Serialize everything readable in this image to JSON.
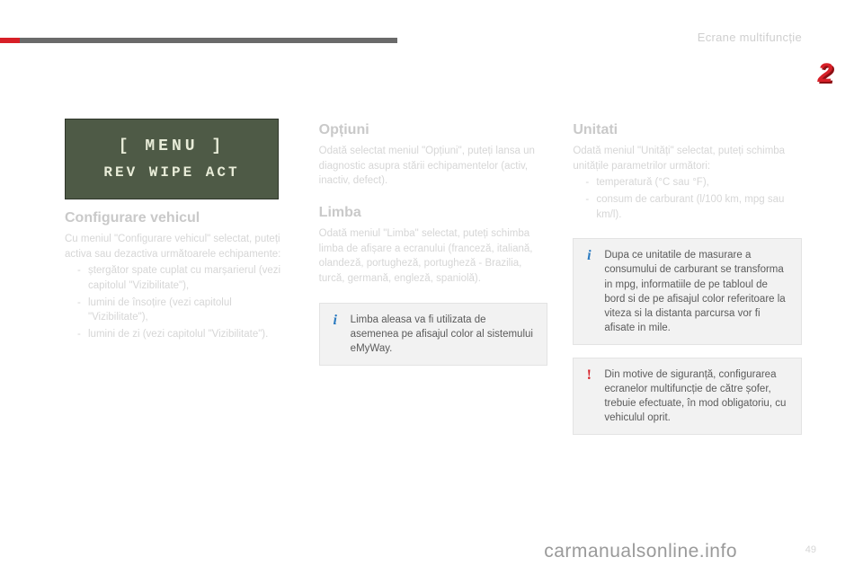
{
  "header": {
    "title": "Ecrane multifuncție",
    "chapter": "2",
    "red_color": "#d71f27",
    "grey_color": "#6a6a6a"
  },
  "lcd": {
    "line1": "[   MENU   ]",
    "line2": "REV WIPE ACT",
    "bg": "#4e5a46",
    "fg": "#e8ecd8"
  },
  "col1": {
    "heading": "Configurare vehicul",
    "intro": "Cu meniul \"Configurare vehicul\" selectat, puteți activa sau dezactiva următoarele echipamente:",
    "items": [
      "ștergător spate cuplat cu marșarierul (vezi capitolul \"Vizibilitate\"),",
      "lumini de însoțire (vezi capitolul \"Vizibilitate\"),",
      "lumini de zi (vezi capitolul \"Vizibilitate\")."
    ]
  },
  "col2": {
    "optiuni": {
      "heading": "Opțiuni",
      "body": "Odată selectat meniul \"Opțiuni\", puteți lansa un diagnostic asupra stării echipamentelor (activ, inactiv, defect)."
    },
    "limba": {
      "heading": "Limba",
      "body": "Odată meniul \"Limba\" selectat, puteți schimba limba de afișare a ecranului (franceză, italiană, olandeză, portugheză, portugheză - Brazilia, turcă, germană, engleză, spaniolă)."
    },
    "note": "Limba aleasa va fi utilizata de asemenea pe afisajul color al sistemului eMyWay."
  },
  "col3": {
    "unitati": {
      "heading": "Unitati",
      "body": "Odată meniul \"Unități\" selectat, puteți schimba unitățile parametrilor următori:",
      "items": [
        "temperatură (°C sau °F),",
        "consum de carburant (l/100 km, mpg sau km/l)."
      ]
    },
    "note_info": "Dupa ce unitatile de masurare a consumului de carburant se transforma in mpg, informatiile de pe tabloul de bord si de pe afisajul color referitoare la viteza si la distanta parcursa vor fi afisate in mile.",
    "note_warn": "Din motive de siguranță, configurarea ecranelor multifuncție de către șofer, trebuie efectuate, în mod obligatoriu, cu vehiculul oprit."
  },
  "footer": {
    "watermark": "carmanualsonline.info",
    "page": "49"
  }
}
